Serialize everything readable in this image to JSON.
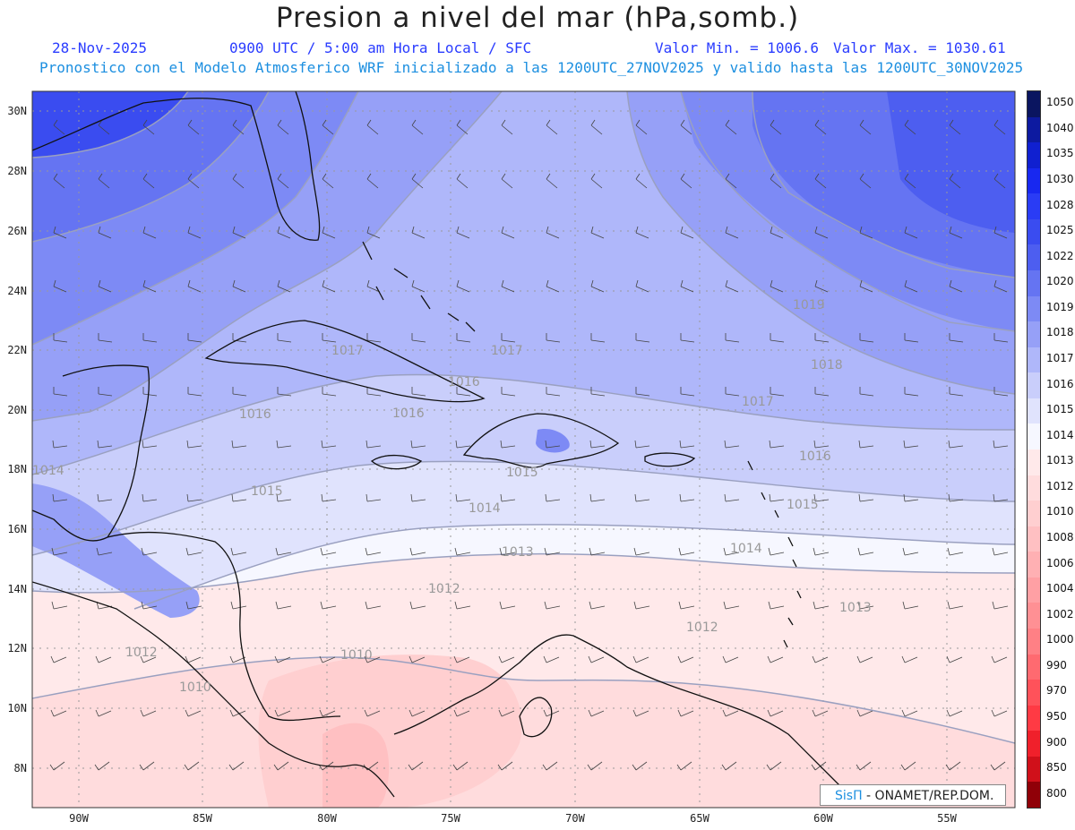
{
  "header": {
    "title": "Presion a nivel del mar (hPa,somb.)",
    "date": "28-Nov-2025",
    "time_info": "0900 UTC / 5:00 am Hora Local / SFC",
    "min_label": "Valor Min. = 1006.6",
    "max_label": "Valor Max. = 1030.61",
    "model_info": "Pronostico con el Modelo Atmosferico WRF inicializado a las 1200UTC_27NOV2025 y valido hasta las  1200UTC_30NOV2025"
  },
  "map": {
    "lon_labels": [
      "90W",
      "85W",
      "80W",
      "75W",
      "70W",
      "65W",
      "60W",
      "55W"
    ],
    "lat_labels": [
      "30N",
      "28N",
      "26N",
      "24N",
      "22N",
      "20N",
      "18N",
      "16N",
      "14N",
      "12N",
      "10N",
      "8N"
    ],
    "contour_labels": [
      "1019",
      "1018",
      "1017",
      "1017",
      "1017",
      "1016",
      "1016",
      "1016",
      "1016",
      "1015",
      "1015",
      "1015",
      "1014",
      "1014",
      "1014",
      "1013",
      "1013",
      "1012",
      "1012",
      "1012",
      "1010",
      "1010"
    ]
  },
  "colorbar": {
    "levels": [
      "1050",
      "1040",
      "1035",
      "1030",
      "1028",
      "1025",
      "1022",
      "1020",
      "1019",
      "1018",
      "1017",
      "1016",
      "1015",
      "1014",
      "1013",
      "1012",
      "1010",
      "1008",
      "1006",
      "1004",
      "1002",
      "1000",
      "990",
      "970",
      "950",
      "900",
      "850",
      "800"
    ],
    "colors": [
      "#0a1560",
      "#0d1aa0",
      "#1020d0",
      "#1828f0",
      "#2a3cf5",
      "#3a4cf0",
      "#4d5ef0",
      "#6574f2",
      "#7d8af5",
      "#96a0f7",
      "#afb7fa",
      "#c9cefb",
      "#e0e3fd",
      "#f6f7ff",
      "#ffe9ea",
      "#ffdcdd",
      "#ffcfd0",
      "#ffc0c2",
      "#ffb0b3",
      "#ffa0a4",
      "#ff9094",
      "#ff8085",
      "#ff6a70",
      "#ff525a",
      "#ff3a44",
      "#f0202b",
      "#d0101a",
      "#900008"
    ]
  },
  "credit": {
    "logo": "SisΠ",
    "text": " - ONAMET/REP.DOM."
  }
}
